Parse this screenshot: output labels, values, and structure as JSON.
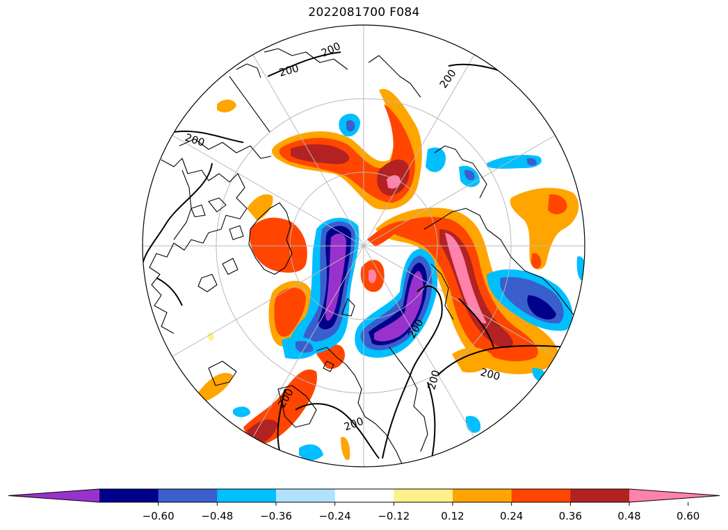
{
  "title": "2022081700 F084",
  "colorbar": {
    "colors": [
      "#9932cc",
      "#00008b",
      "#3a5fcd",
      "#00bfff",
      "#b0e2ff",
      "#ffffff",
      "#fff08a",
      "#ffa500",
      "#ff4500",
      "#b22222",
      "#ff82ab"
    ],
    "tick_labels": [
      "−0.60",
      "−0.48",
      "−0.36",
      "−0.24",
      "−0.12",
      "0.12",
      "0.24",
      "0.36",
      "0.48",
      "0.60"
    ],
    "extend": "both"
  },
  "contour_label": "200",
  "contour_labels": [
    "200",
    "200",
    "200",
    "200",
    "200",
    "200",
    "200",
    "200",
    "200"
  ]
}
